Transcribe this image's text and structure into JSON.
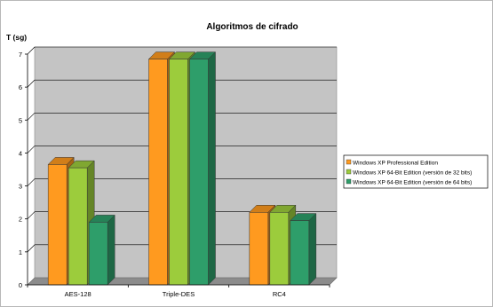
{
  "chart_data": {
    "type": "bar",
    "title": "Algoritmos de cifrado",
    "ylabel": "T (sg)",
    "xlabel": "",
    "categories": [
      "AES-128",
      "Triple-DES",
      "RC4"
    ],
    "series": [
      {
        "name": "Windows XP Professional Edition",
        "values": [
          3.65,
          6.85,
          2.2
        ],
        "color": "#ff9a1f"
      },
      {
        "name": "Windows XP 64-Bit Edition (versión de 32 bits)",
        "values": [
          3.55,
          6.85,
          2.2
        ],
        "color": "#9ccc3c"
      },
      {
        "name": "Windows XP 64-Bit Edition (versión de 64 bits)",
        "values": [
          1.9,
          6.85,
          1.95
        ],
        "color": "#2e9e6a"
      }
    ],
    "ylim": [
      0,
      7
    ],
    "yticks": [
      0,
      1,
      2,
      3,
      4,
      5,
      6,
      7
    ],
    "grid": true,
    "legend_position": "right",
    "colors": {
      "plot_wall": "#c4c4c4",
      "plot_floor": "#8c8c8c",
      "grid": "#000000"
    }
  }
}
